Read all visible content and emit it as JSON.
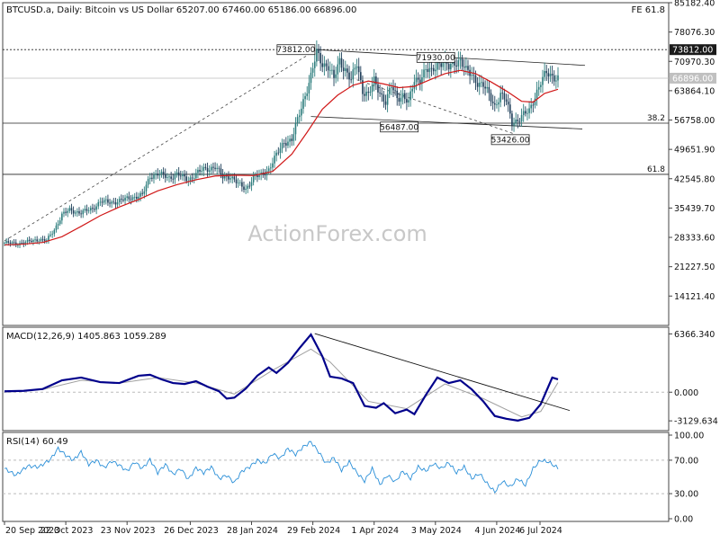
{
  "header": {
    "title": "BTCUSD.a, Daily:  Bitcoin vs US Dollar  65207.00 67460.00 65186.00 66896.00",
    "fe_label": "FE 61.8"
  },
  "watermark": "ActionForex.com",
  "colors": {
    "bull": "#2d7d7d",
    "bear": "#1f3f5a",
    "ma": "#d01818",
    "macd": "#00008b",
    "signal": "#a0a0a0",
    "rsi": "#2a8fd8",
    "trend": "#303030"
  },
  "chart_data": [
    {
      "type": "candlestick",
      "name": "BTCUSD.a Daily",
      "y_ticks": [
        "85182.40",
        "78076.30",
        "70970.30",
        "63864.10",
        "56758.00",
        "49651.90",
        "42545.80",
        "35439.70",
        "28333.60",
        "21227.50",
        "14121.40"
      ],
      "ylim": [
        7000,
        85182.4
      ],
      "x_ticks": [
        "20 Sep 2023",
        "22 Oct 2023",
        "23 Nov 2023",
        "26 Dec 2023",
        "28 Jan 2024",
        "29 Feb 2024",
        "1 Apr 2024",
        "3 May 2024",
        "4 Jun 2024",
        "6 Jul 2024"
      ],
      "current_price": "66896.00",
      "levels": [
        {
          "label": "73812.00",
          "value": 73812,
          "style": "dotted"
        },
        {
          "label": "38.2",
          "value": 56000,
          "style": "solid"
        },
        {
          "label": "61.8",
          "value": 43600,
          "style": "solid"
        }
      ],
      "annotations": [
        {
          "label": "73812.00",
          "value": 73812
        },
        {
          "label": "71930.00",
          "value": 71930
        },
        {
          "label": "56487.00",
          "value": 56487
        },
        {
          "label": "53426.00",
          "value": 53426
        }
      ],
      "close_path": [
        [
          0,
          27000
        ],
        [
          6,
          26800
        ],
        [
          12,
          27200
        ],
        [
          18,
          27900
        ],
        [
          22,
          27500
        ],
        [
          26,
          30200
        ],
        [
          30,
          33800
        ],
        [
          34,
          34900
        ],
        [
          40,
          34300
        ],
        [
          46,
          35300
        ],
        [
          50,
          37000
        ],
        [
          56,
          36800
        ],
        [
          62,
          37400
        ],
        [
          66,
          38000
        ],
        [
          72,
          38500
        ],
        [
          76,
          43200
        ],
        [
          80,
          43700
        ],
        [
          86,
          42800
        ],
        [
          90,
          43600
        ],
        [
          96,
          42300
        ],
        [
          100,
          43700
        ],
        [
          104,
          44800
        ],
        [
          110,
          45400
        ],
        [
          114,
          42900
        ],
        [
          118,
          43200
        ],
        [
          122,
          41200
        ],
        [
          126,
          40100
        ],
        [
          130,
          42800
        ],
        [
          134,
          43400
        ],
        [
          138,
          44900
        ],
        [
          142,
          48200
        ],
        [
          146,
          51500
        ],
        [
          150,
          51900
        ],
        [
          156,
          61500
        ],
        [
          160,
          67300
        ],
        [
          163,
          73000
        ],
        [
          166,
          70500
        ],
        [
          169,
          69800
        ],
        [
          172,
          66600
        ],
        [
          175,
          71200
        ],
        [
          178,
          69000
        ],
        [
          181,
          66300
        ],
        [
          184,
          70400
        ],
        [
          187,
          64000
        ],
        [
          190,
          62800
        ],
        [
          193,
          66100
        ],
        [
          196,
          63500
        ],
        [
          199,
          61200
        ],
        [
          202,
          64800
        ],
        [
          205,
          62100
        ],
        [
          208,
          62900
        ],
        [
          211,
          60800
        ],
        [
          214,
          66300
        ],
        [
          217,
          66900
        ],
        [
          220,
          69000
        ],
        [
          223,
          68200
        ],
        [
          226,
          70500
        ],
        [
          229,
          71000
        ],
        [
          232,
          69300
        ],
        [
          235,
          70600
        ],
        [
          238,
          71500
        ],
        [
          241,
          68600
        ],
        [
          244,
          67500
        ],
        [
          247,
          66000
        ],
        [
          250,
          65200
        ],
        [
          253,
          62700
        ],
        [
          256,
          60200
        ],
        [
          259,
          63100
        ],
        [
          262,
          61200
        ],
        [
          265,
          56300
        ],
        [
          268,
          56800
        ],
        [
          271,
          57900
        ],
        [
          274,
          59000
        ],
        [
          277,
          62700
        ],
        [
          280,
          65800
        ],
        [
          283,
          68100
        ],
        [
          286,
          67500
        ],
        [
          289,
          66896
        ]
      ],
      "ma_path": [
        [
          0,
          26500
        ],
        [
          10,
          26700
        ],
        [
          20,
          27100
        ],
        [
          30,
          28500
        ],
        [
          40,
          31000
        ],
        [
          50,
          33600
        ],
        [
          60,
          35700
        ],
        [
          70,
          37500
        ],
        [
          80,
          39600
        ],
        [
          90,
          41100
        ],
        [
          100,
          42300
        ],
        [
          110,
          43200
        ],
        [
          120,
          43400
        ],
        [
          130,
          43300
        ],
        [
          140,
          44300
        ],
        [
          150,
          48500
        ],
        [
          158,
          53800
        ],
        [
          166,
          59400
        ],
        [
          174,
          62800
        ],
        [
          182,
          65200
        ],
        [
          190,
          66200
        ],
        [
          198,
          65500
        ],
        [
          206,
          64600
        ],
        [
          214,
          64900
        ],
        [
          222,
          66500
        ],
        [
          230,
          68000
        ],
        [
          238,
          68800
        ],
        [
          246,
          68000
        ],
        [
          254,
          66000
        ],
        [
          262,
          63800
        ],
        [
          270,
          61300
        ],
        [
          276,
          61100
        ],
        [
          282,
          63200
        ],
        [
          289,
          64200
        ]
      ]
    },
    {
      "type": "line",
      "name": "MACD(12,26,9) 1405.863 1059.289",
      "y_ticks": [
        "6366.340",
        "0.000",
        "-3129.634"
      ],
      "ylim": [
        -4000,
        6700
      ],
      "macd_path": [
        [
          0,
          100
        ],
        [
          10,
          150
        ],
        [
          20,
          350
        ],
        [
          30,
          1300
        ],
        [
          40,
          1600
        ],
        [
          50,
          1100
        ],
        [
          60,
          1000
        ],
        [
          70,
          1800
        ],
        [
          76,
          1900
        ],
        [
          82,
          1400
        ],
        [
          88,
          1000
        ],
        [
          94,
          900
        ],
        [
          100,
          1200
        ],
        [
          106,
          600
        ],
        [
          112,
          100
        ],
        [
          116,
          -700
        ],
        [
          120,
          -600
        ],
        [
          126,
          400
        ],
        [
          132,
          1800
        ],
        [
          138,
          2700
        ],
        [
          142,
          2100
        ],
        [
          148,
          3200
        ],
        [
          154,
          4800
        ],
        [
          160,
          6300
        ],
        [
          166,
          3900
        ],
        [
          170,
          1700
        ],
        [
          176,
          1500
        ],
        [
          182,
          1000
        ],
        [
          188,
          -1500
        ],
        [
          194,
          -1700
        ],
        [
          198,
          -1200
        ],
        [
          204,
          -2300
        ],
        [
          210,
          -1900
        ],
        [
          214,
          -2400
        ],
        [
          220,
          -300
        ],
        [
          226,
          1600
        ],
        [
          232,
          1000
        ],
        [
          238,
          1300
        ],
        [
          244,
          300
        ],
        [
          250,
          -1000
        ],
        [
          256,
          -2600
        ],
        [
          262,
          -2900
        ],
        [
          268,
          -3100
        ],
        [
          274,
          -2800
        ],
        [
          280,
          -1300
        ],
        [
          286,
          1600
        ],
        [
          289,
          1406
        ]
      ],
      "signal_path": [
        [
          0,
          0
        ],
        [
          20,
          300
        ],
        [
          40,
          1300
        ],
        [
          60,
          1000
        ],
        [
          80,
          1600
        ],
        [
          100,
          1000
        ],
        [
          120,
          -200
        ],
        [
          140,
          2400
        ],
        [
          160,
          4700
        ],
        [
          170,
          3300
        ],
        [
          190,
          -1000
        ],
        [
          210,
          -1800
        ],
        [
          230,
          900
        ],
        [
          250,
          -700
        ],
        [
          270,
          -2700
        ],
        [
          280,
          -2100
        ],
        [
          289,
          1059
        ]
      ],
      "trend_line": [
        [
          162,
          6400
        ],
        [
          289,
          -2000
        ]
      ]
    },
    {
      "type": "line",
      "name": "RSI(14) 60.49",
      "y_ticks": [
        "100.00",
        "70.00",
        "30.00",
        "0.00"
      ],
      "ylim": [
        0,
        100
      ],
      "rsi_path": [
        [
          0,
          60
        ],
        [
          6,
          52
        ],
        [
          12,
          63
        ],
        [
          18,
          62
        ],
        [
          24,
          71
        ],
        [
          28,
          84
        ],
        [
          32,
          76
        ],
        [
          36,
          70
        ],
        [
          40,
          80
        ],
        [
          44,
          65
        ],
        [
          48,
          70
        ],
        [
          52,
          61
        ],
        [
          56,
          69
        ],
        [
          60,
          64
        ],
        [
          64,
          57
        ],
        [
          68,
          68
        ],
        [
          72,
          60
        ],
        [
          76,
          71
        ],
        [
          80,
          55
        ],
        [
          84,
          65
        ],
        [
          88,
          53
        ],
        [
          92,
          60
        ],
        [
          96,
          47
        ],
        [
          100,
          61
        ],
        [
          104,
          55
        ],
        [
          108,
          62
        ],
        [
          112,
          48
        ],
        [
          116,
          52
        ],
        [
          120,
          43
        ],
        [
          124,
          57
        ],
        [
          128,
          62
        ],
        [
          132,
          70
        ],
        [
          136,
          66
        ],
        [
          140,
          78
        ],
        [
          144,
          72
        ],
        [
          148,
          84
        ],
        [
          152,
          77
        ],
        [
          156,
          86
        ],
        [
          160,
          92
        ],
        [
          164,
          80
        ],
        [
          168,
          66
        ],
        [
          172,
          73
        ],
        [
          176,
          58
        ],
        [
          180,
          68
        ],
        [
          184,
          55
        ],
        [
          188,
          45
        ],
        [
          192,
          60
        ],
        [
          196,
          41
        ],
        [
          200,
          52
        ],
        [
          204,
          44
        ],
        [
          208,
          57
        ],
        [
          212,
          48
        ],
        [
          216,
          62
        ],
        [
          220,
          57
        ],
        [
          224,
          66
        ],
        [
          228,
          60
        ],
        [
          232,
          67
        ],
        [
          236,
          55
        ],
        [
          240,
          62
        ],
        [
          244,
          48
        ],
        [
          248,
          54
        ],
        [
          252,
          42
        ],
        [
          256,
          32
        ],
        [
          260,
          45
        ],
        [
          264,
          38
        ],
        [
          268,
          48
        ],
        [
          272,
          40
        ],
        [
          276,
          60
        ],
        [
          280,
          70
        ],
        [
          284,
          68
        ],
        [
          289,
          60.49
        ]
      ]
    }
  ]
}
